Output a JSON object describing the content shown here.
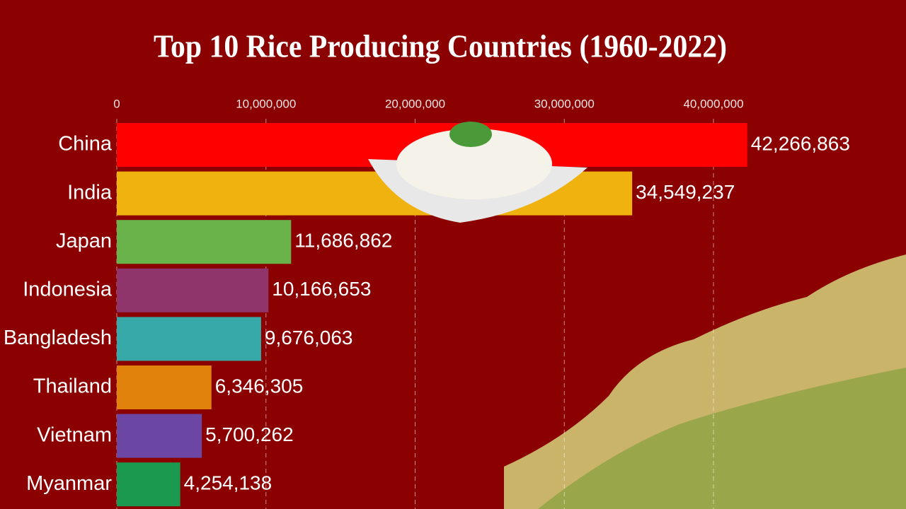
{
  "chart_data": {
    "type": "bar",
    "orientation": "horizontal",
    "title": "Top 10 Rice Producing Countries (1960-2022)",
    "categories": [
      "China",
      "India",
      "Japan",
      "Indonesia",
      "Bangladesh",
      "Thailand",
      "Vietnam",
      "Myanmar"
    ],
    "values": [
      42266863,
      34549237,
      11686862,
      10166653,
      9676063,
      6346305,
      5700262,
      4254138
    ],
    "value_labels": [
      "42,266,863",
      "34,549,237",
      "11,686,862",
      "10,166,653",
      "9,676,063",
      "6,346,305",
      "5,700,262",
      "4,254,138"
    ],
    "colors": [
      "#ff0000",
      "#efb20e",
      "#6ab34a",
      "#8f356c",
      "#38a9a9",
      "#e0820c",
      "#6b46a3",
      "#1b9a4f"
    ],
    "xlim": [
      0,
      45000000
    ],
    "xticks": [
      0,
      {
        "value": 10000000,
        "label": "10,000,000"
      },
      {
        "value": 20000000,
        "label": "20,000,000"
      },
      {
        "value": 30000000,
        "label": "30,000,000"
      },
      {
        "value": 40000000,
        "label": "40,000,000"
      }
    ],
    "grid": true
  }
}
